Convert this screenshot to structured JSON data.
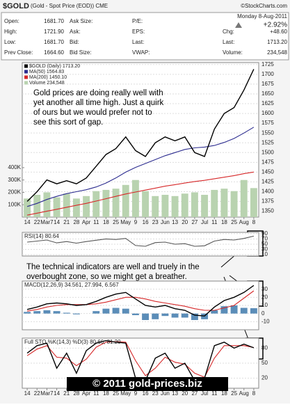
{
  "header": {
    "symbol": "$GOLD",
    "description": "(Gold - Spot Price (EOD)) CME",
    "source": "©StockCharts.com",
    "date": "Monday 8-Aug-2011",
    "change_pct": "+2.92%",
    "col1": [
      [
        "Open:",
        "1681.70"
      ],
      [
        "High:",
        "1721.90"
      ],
      [
        "Low:",
        "1681.70"
      ],
      [
        "Prev Close:",
        "1664.60"
      ]
    ],
    "col2": [
      "Ask Size:",
      "Ask:",
      "Bid:",
      "Bid Size:"
    ],
    "col3": [
      "P/E:",
      "EPS:",
      "Last:",
      "VWAP:"
    ],
    "col4": [
      [
        "Chg:",
        "+48.60"
      ],
      [
        "Last:",
        "1713.20"
      ],
      [
        "Volume:",
        "234,548"
      ]
    ]
  },
  "notes": [
    [
      "Gold prices are doing really well with",
      "yet another all time high.  Just a quirk",
      "of ours but we would prefer not to",
      "see this sort of gap."
    ],
    [
      "The technical indicators are well and truely in the",
      "overbought zone, so we might get a breather."
    ]
  ],
  "watermark": "© 2011 gold-prices.biz",
  "chart_data": [
    {
      "type": "line",
      "categories": [
        "14",
        "22",
        "Mar7",
        "14",
        "21",
        "28",
        "Apr",
        "11",
        "18",
        "25",
        "May",
        "9",
        "16",
        "23",
        "Jun",
        "13",
        "20",
        "27",
        "Jul",
        "11",
        "18",
        "25",
        "Aug",
        "8"
      ],
      "ylim": [
        1335,
        1730
      ],
      "yticks": [
        1350,
        1375,
        1400,
        1425,
        1450,
        1475,
        1500,
        1525,
        1550,
        1575,
        1600,
        1625,
        1650,
        1675,
        1700,
        1725
      ],
      "y2lim": [
        0,
        1250000
      ],
      "y2ticks": [
        {
          "value": 100000,
          "label": "100K"
        },
        {
          "value": 200000,
          "label": "200K"
        },
        {
          "value": 300000,
          "label": "300K"
        },
        {
          "value": 400000,
          "label": "400K"
        }
      ],
      "grid": true,
      "series": [
        {
          "name": "Volume 234,548",
          "type": "bar",
          "axis": "y2",
          "color": "#b9d3b0",
          "values": [
            150000,
            180000,
            200000,
            160000,
            190000,
            150000,
            170000,
            210000,
            220000,
            230000,
            260000,
            300000,
            210000,
            170000,
            180000,
            170000,
            190000,
            200000,
            180000,
            220000,
            230000,
            210000,
            300000,
            234548
          ]
        },
        {
          "name": "MA(200) 1450.10",
          "type": "line",
          "color": "#d62728",
          "values": [
            1340,
            1345,
            1350,
            1355,
            1360,
            1365,
            1370,
            1376,
            1382,
            1388,
            1394,
            1399,
            1404,
            1409,
            1414,
            1418,
            1422,
            1426,
            1429,
            1433,
            1437,
            1441,
            1446,
            1450.1
          ]
        },
        {
          "name": "MA(50) 1564.83",
          "type": "line",
          "color": "#2b2b8f",
          "values": [
            1362,
            1370,
            1380,
            1388,
            1395,
            1400,
            1405,
            1412,
            1422,
            1435,
            1450,
            1462,
            1472,
            1482,
            1492,
            1500,
            1508,
            1512,
            1514,
            1518,
            1526,
            1536,
            1550,
            1564.83
          ]
        },
        {
          "name": "$GOLD (Daily) 1713.20",
          "type": "line",
          "color": "#000000",
          "values": [
            1375,
            1400,
            1430,
            1420,
            1428,
            1420,
            1435,
            1465,
            1495,
            1510,
            1540,
            1505,
            1490,
            1525,
            1540,
            1530,
            1540,
            1500,
            1490,
            1560,
            1600,
            1615,
            1660,
            1713.2
          ]
        }
      ]
    },
    {
      "type": "line",
      "title": "RSI(14) 80.64",
      "ylim": [
        5,
        95
      ],
      "yticks": [
        10,
        30,
        50,
        70,
        90
      ],
      "grid": true,
      "series": [
        {
          "type": "line",
          "color": "#555555",
          "values": [
            58,
            62,
            66,
            55,
            60,
            54,
            60,
            65,
            70,
            68,
            72,
            45,
            42,
            56,
            58,
            50,
            52,
            42,
            44,
            62,
            68,
            66,
            72,
            80.64
          ]
        }
      ]
    },
    {
      "type": "line",
      "title": "MACD(12,26,9) 34.561, 27.994, 6.567",
      "ylim": [
        -20,
        40
      ],
      "yticks": [
        -10,
        0,
        10,
        20,
        30
      ],
      "grid": true,
      "series": [
        {
          "type": "bar",
          "color": "#5b8db8",
          "values": [
            2,
            3,
            4,
            3,
            1,
            -1,
            0,
            3,
            6,
            7,
            6,
            -2,
            -8,
            -7,
            -3,
            -5,
            -5,
            -8,
            -7,
            4,
            9,
            10,
            7,
            6.567
          ]
        },
        {
          "type": "line",
          "color": "#d62728",
          "values": [
            3,
            5,
            8,
            10,
            11,
            11,
            11,
            12,
            14,
            17,
            20,
            20,
            18,
            15,
            13,
            11,
            9,
            6,
            4,
            4,
            7,
            10,
            19,
            27.994
          ]
        },
        {
          "type": "line",
          "color": "#000000",
          "values": [
            5,
            8,
            12,
            13,
            12,
            10,
            11,
            15,
            20,
            24,
            26,
            18,
            10,
            8,
            10,
            6,
            4,
            -2,
            -3,
            8,
            16,
            20,
            26,
            34.561
          ]
        }
      ]
    },
    {
      "type": "line",
      "title": "Full STO %K(14,3) %D(3) 80.66, 81.20",
      "categories": [
        "14",
        "22",
        "Mar7",
        "14",
        "21",
        "28",
        "Apr",
        "11",
        "18",
        "25",
        "May",
        "9",
        "16",
        "23",
        "Jun",
        "13",
        "20",
        "27",
        "Jul",
        "11",
        "18",
        "25",
        "Aug",
        "8"
      ],
      "ylim": [
        0,
        100
      ],
      "yticks": [
        20,
        50,
        80
      ],
      "grid": true,
      "series": [
        {
          "type": "line",
          "color": "#d62728",
          "values": [
            65,
            78,
            85,
            62,
            60,
            45,
            58,
            82,
            92,
            93,
            92,
            55,
            25,
            40,
            62,
            52,
            48,
            30,
            22,
            60,
            85,
            85,
            85,
            81.2
          ]
        },
        {
          "type": "line",
          "color": "#000000",
          "values": [
            70,
            85,
            90,
            40,
            70,
            30,
            75,
            90,
            95,
            92,
            90,
            20,
            15,
            60,
            70,
            40,
            50,
            15,
            20,
            85,
            92,
            80,
            88,
            80.66
          ]
        }
      ]
    }
  ]
}
